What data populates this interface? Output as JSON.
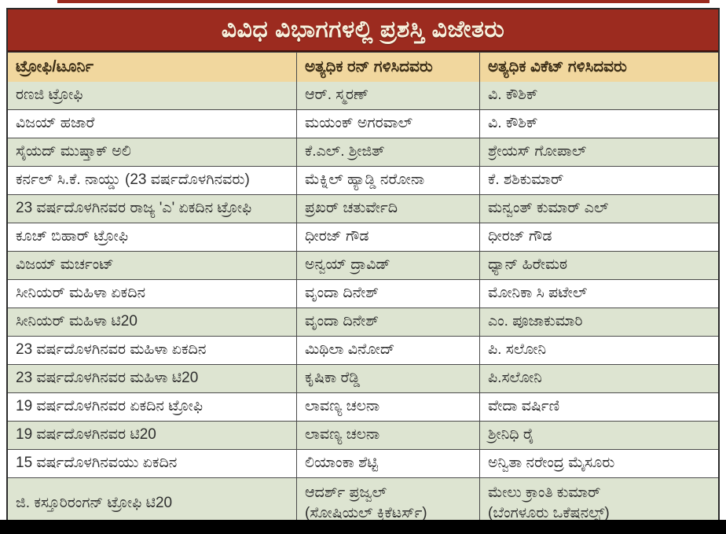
{
  "page": {
    "title": "ವಿವಿಧ ವಿಭಾಗಗಳಲ್ಲಿ ಪ್ರಶಸ್ತಿ ವಿಜೇತರು"
  },
  "colors": {
    "title_bar": "#9c2b1f",
    "title_text": "#f8f1dd",
    "header_bg": "#f1d79e",
    "row_green": "#dde4d1",
    "row_white": "#ffffff",
    "grid_line": "#4a4a4a",
    "bottom_bar": "#000000"
  },
  "table": {
    "columns": [
      "ಟ್ರೋಫಿ/ಟೂರ್ನಿ",
      "ಅತ್ಯಧಿಕ ರನ್ ಗಳಿಸಿದವರು",
      "ಅತ್ಯಧಿಕ ವಿಕೆಟ್ ಗಳಿಸಿದವರು"
    ],
    "rows": [
      {
        "cells": [
          "ರಣಜಿ ಟ್ರೋಫಿ",
          "ಆರ್. ಸ್ಮರಣ್",
          "ವಿ. ಕೌಶಿಕ್"
        ]
      },
      {
        "cells": [
          "ವಿಜಯ್ ಹಜಾರೆ",
          "ಮಯಂಕ್ ಅಗರವಾಲ್",
          "ವಿ. ಕೌಶಿಕ್"
        ]
      },
      {
        "cells": [
          "ಸೈಯದ್ ಮುಷ್ತಾಕ್ ಅಲಿ",
          "ಕೆ.ಎಲ್. ಶ್ರೀಜಿತ್",
          "ಶ್ರೇಯಸ್ ಗೋಪಾಲ್"
        ]
      },
      {
        "cells": [
          "ಕರ್ನಲ್ ಸಿ.ಕೆ. ನಾಯ್ಡು (23 ವರ್ಷದೊಳಗಿನವರು)",
          "ಮೆಕ್ನಿಲ್ ಹ್ಯಾಡ್ಡಿ ನರೋನಾ",
          "ಕೆ. ಶಶಿಕುಮಾರ್"
        ]
      },
      {
        "cells": [
          "23 ವರ್ಷದೊಳಗಿನವರ ರಾಜ್ಯ 'ಎ' ಏಕದಿನ ಟ್ರೋಫಿ",
          "ಪ್ರಖರ್ ಚತುರ್ವೇದಿ",
          "ಮನ್ವಂತ್ ಕುಮಾರ್ ಎಲ್"
        ]
      },
      {
        "cells": [
          "ಕೂಚ್ ಬಿಹಾರ್ ಟ್ರೋಫಿ",
          "ಧೀರಜ್ ಗೌಡ",
          "ಧೀರಜ್ ಗೌಡ"
        ]
      },
      {
        "cells": [
          "ವಿಜಯ್ ಮರ್ಚಂಟ್",
          "ಅನ್ವಯ್ ದ್ರಾವಿಡ್",
          "ಧ್ಯಾನ್ ಹಿರೇಮಠ"
        ]
      },
      {
        "cells": [
          "ಸೀನಿಯರ್ ಮಹಿಳಾ ಏಕದಿನ",
          "ವೃಂದಾ ದಿನೇಶ್",
          "ಮೋನಿಕಾ ಸಿ ಪಟೇಲ್"
        ]
      },
      {
        "cells": [
          "ಸೀನಿಯರ್ ಮಹಿಳಾ ಟಿ20",
          "ವೃಂದಾ ದಿನೇಶ್",
          "ಎಂ. ಪೂಜಾಕುಮಾರಿ"
        ]
      },
      {
        "cells": [
          "23 ವರ್ಷದೊಳಗಿನವರ ಮಹಿಳಾ ಏಕದಿನ",
          "ಮಿಥಿಲಾ ವಿನೋದ್",
          "ಪಿ. ಸಲೋನಿ"
        ]
      },
      {
        "cells": [
          "23 ವರ್ಷದೊಳಗಿನವರ ಮಹಿಳಾ ಟಿ20",
          "ಕೃಷಿಕಾ ರೆಡ್ಡಿ",
          "ಪಿ.ಸಲೋನಿ"
        ]
      },
      {
        "cells": [
          "19 ವರ್ಷದೊಳಗಿನವರ ಏಕದಿನ ಟ್ರೋಫಿ",
          "ಲಾವಣ್ಯ ಚಲನಾ",
          "ವೇದಾ ವರ್ಷಿಣಿ"
        ]
      },
      {
        "cells": [
          "19 ವರ್ಷದೊಳಗಿನವರ ಟಿ20",
          "ಲಾವಣ್ಯ ಚಲನಾ",
          "ಶ್ರೀನಿಧಿ ರೈ"
        ]
      },
      {
        "cells": [
          "15 ವರ್ಷದೊಳಗಿನವಯು ಏಕದಿನ",
          "ಲಿಯಾಂಕಾ ಶೆಟ್ಟಿ",
          "ಅನ್ವಿತಾ ನರೇಂದ್ರ ಮೈಸೂರು"
        ]
      },
      {
        "cells": [
          "ಜಿ. ಕಸ್ತೂರಿರಂಗನ್ ಟ್ರೋಫಿ ಟಿ20",
          "ಆದರ್ಶ್ ಪ್ರಜ್ವಲ್\n(ಸೋಷಿಯಲ್ ಕ್ರಿಕೆಟರ್ಸ್)",
          "ಮೇಲು ಕ್ರಾಂತಿ ಕುಮಾರ್\n(ಬೆಂಗಳೂರು ಒಕೆಷನಲ್ಸ್)"
        ]
      }
    ]
  }
}
